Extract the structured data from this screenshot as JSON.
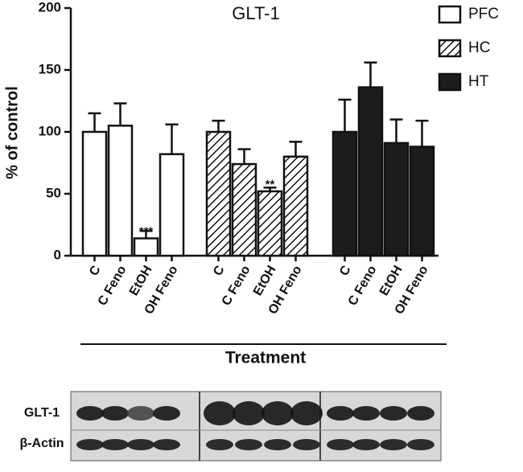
{
  "chart_data": {
    "type": "bar",
    "title": "GLT-1",
    "ylabel": "% of control",
    "xlabel": "Treatment",
    "categories": [
      "C",
      "C Feno",
      "EtOH",
      "OH Feno"
    ],
    "series": [
      {
        "name": "PFC",
        "color": "#ffffff",
        "pattern": "none",
        "values": [
          100,
          105,
          14,
          82
        ],
        "errors": [
          15,
          18,
          6,
          24
        ],
        "annotations": [
          null,
          null,
          "***",
          null
        ]
      },
      {
        "name": "HC",
        "color": "#ffffff",
        "pattern": "hatch",
        "values": [
          100,
          74,
          52,
          80
        ],
        "errors": [
          9,
          12,
          3,
          12
        ],
        "annotations": [
          null,
          null,
          "**",
          null
        ]
      },
      {
        "name": "HT",
        "color": "#1c1c1c",
        "pattern": "none",
        "values": [
          100,
          136,
          91,
          88
        ],
        "errors": [
          26,
          20,
          19,
          21
        ],
        "annotations": [
          null,
          null,
          null,
          null
        ]
      }
    ],
    "ylim": [
      0,
      200
    ],
    "yticks": [
      0,
      50,
      100,
      150,
      200
    ],
    "grid": false,
    "legend": "top-right"
  },
  "blot": {
    "rows": [
      "GLT-1",
      "β-Actin"
    ]
  }
}
